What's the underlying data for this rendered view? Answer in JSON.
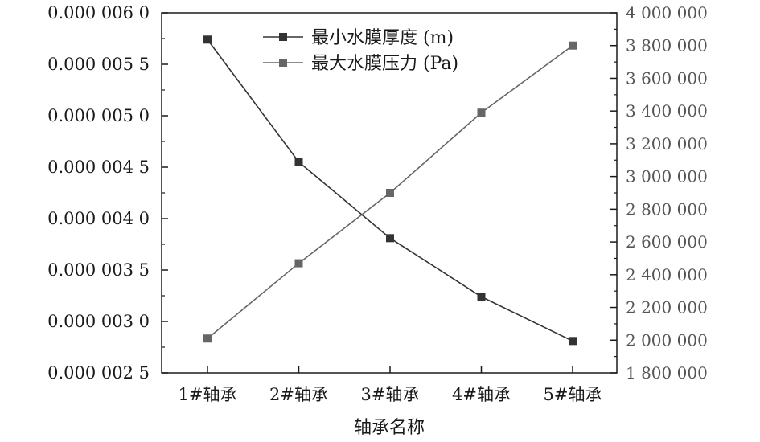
{
  "chart_data": {
    "type": "line",
    "title": "",
    "xlabel": "轴承名称",
    "categories": [
      "1#轴承",
      "2#轴承",
      "3#轴承",
      "4#轴承",
      "5#轴承"
    ],
    "y_left": {
      "label": "",
      "lim": [
        2.5e-06,
        6e-06
      ],
      "ticks": [
        2.5e-06,
        3e-06,
        3.5e-06,
        4e-06,
        4.5e-06,
        5e-06,
        5.5e-06,
        6e-06
      ],
      "tick_labels": [
        "0.000 002 5",
        "0.000 003 0",
        "0.000 003 5",
        "0.000 004 0",
        "0.000 004 5",
        "0.000 005 0",
        "0.000 005 5",
        "0.000 006 0"
      ]
    },
    "y_right": {
      "label": "",
      "lim": [
        1800000,
        4000000
      ],
      "ticks": [
        1800000,
        2000000,
        2200000,
        2400000,
        2600000,
        2800000,
        3000000,
        3200000,
        3400000,
        3600000,
        3800000,
        4000000
      ],
      "tick_labels": [
        "1 800 000",
        "2 000 000",
        "2 200 000",
        "2 400 000",
        "2 600 000",
        "2 800 000",
        "3 000 000",
        "3 200 000",
        "3 400 000",
        "3 600 000",
        "3 800 000",
        "4 000 000"
      ]
    },
    "series": [
      {
        "name": "最小水膜厚度 (m)",
        "axis": "left",
        "color": "#333333",
        "marker": "square",
        "values": [
          5.74e-06,
          4.55e-06,
          3.81e-06,
          3.24e-06,
          2.81e-06
        ]
      },
      {
        "name": "最大水膜压力 (Pa)",
        "axis": "right",
        "color": "#666666",
        "marker": "square",
        "values": [
          2010000,
          2470000,
          2900000,
          3390000,
          3800000
        ]
      }
    ],
    "legend_position": "top-center",
    "grid": false
  }
}
